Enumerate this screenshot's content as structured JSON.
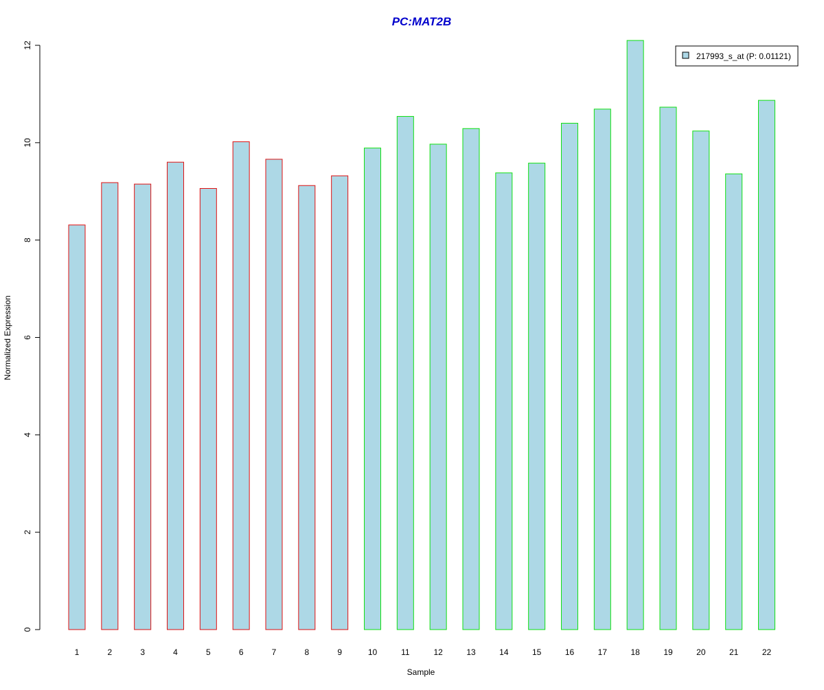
{
  "chart_data": {
    "type": "bar",
    "title": "PC:MAT2B",
    "xlabel": "Sample",
    "ylabel": "Normalized Expression",
    "categories": [
      "1",
      "2",
      "3",
      "4",
      "5",
      "6",
      "7",
      "8",
      "9",
      "10",
      "11",
      "12",
      "13",
      "14",
      "15",
      "16",
      "17",
      "18",
      "19",
      "20",
      "21",
      "22"
    ],
    "series": [
      {
        "name": "217993_s_at (P: 0.01121)",
        "values": [
          8.31,
          9.18,
          9.15,
          9.6,
          9.06,
          10.02,
          9.66,
          9.12,
          9.32,
          9.89,
          10.54,
          9.97,
          10.29,
          9.38,
          9.58,
          10.4,
          10.69,
          12.1,
          10.73,
          10.24,
          9.36,
          10.87
        ]
      }
    ],
    "groups": [
      {
        "range": [
          1,
          9
        ],
        "border_color": "#e01010"
      },
      {
        "range": [
          10,
          22
        ],
        "border_color": "#10e010"
      }
    ],
    "ylim": [
      0,
      12
    ],
    "yticks": [
      0,
      2,
      4,
      6,
      8,
      10,
      12
    ],
    "grid": false,
    "legend_position": "top-right",
    "colors": {
      "bar_fill": "#add8e6",
      "title": "#0000cc",
      "axis": "#000000"
    }
  }
}
